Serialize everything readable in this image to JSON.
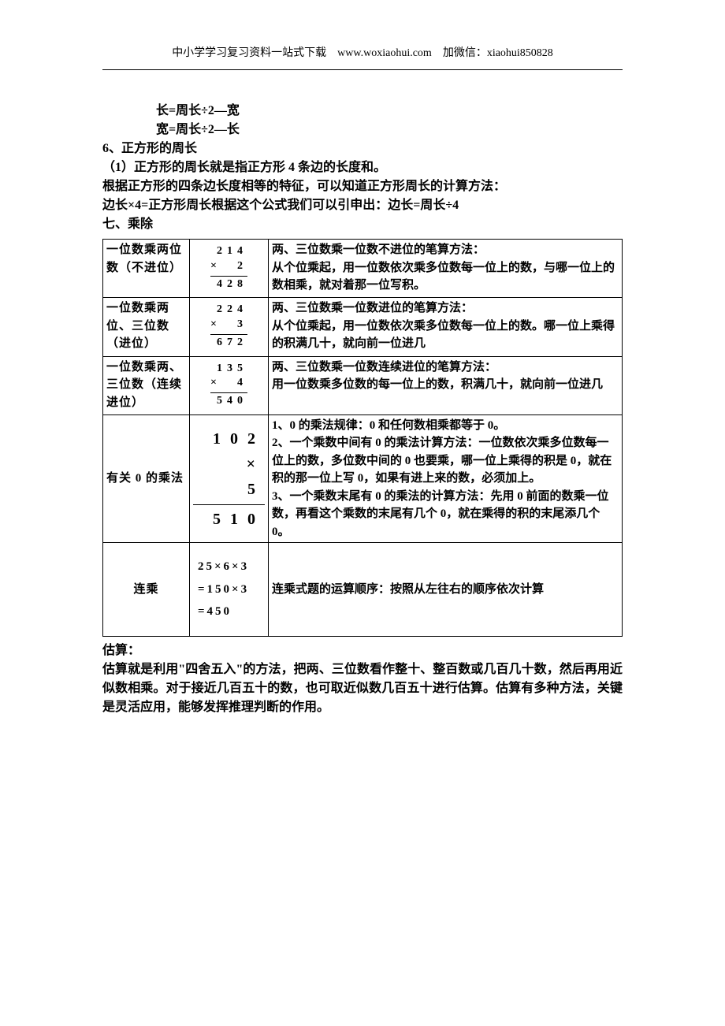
{
  "header": {
    "text": "中小学学习复习资料一站式下载　www.woxiaohui.com　加微信：xiaohui850828"
  },
  "lines": {
    "l1": "长=周长÷2—宽",
    "l2": "宽=周长÷2—长",
    "l3": "6、正方形的周长",
    "l4": "（1）正方形的周长就是指正方形 4 条边的长度和。",
    "l5": "根据正方形的四条边长度相等的特征，可以知道正方形周长的计算方法：",
    "l6": "边长×4=正方形周长根据这个公式我们可以引申出：边长=周长÷4",
    "l7": "七、乘除"
  },
  "table": {
    "r1": {
      "c1": "一位数乘两位数（不进位）",
      "c2": {
        "a": "214",
        "b": "×　2",
        "c": "428"
      },
      "c3": "两、三位数乘一位数不进位的笔算方法：\n从个位乘起，用一位数依次乘多位数每一位上的数，与哪一位上的数相乘，就对着那一位写积。"
    },
    "r2": {
      "c1": "一位数乘两位、三位数（进位）",
      "c2": {
        "a": "224",
        "b": "×　3",
        "c": "672"
      },
      "c3": "两、三位数乘一位数进位的笔算方法：\n从个位乘起，用一位数依次乘多位数每一位上的数。哪一位上乘得的积满几十，就向前一位进几"
    },
    "r3": {
      "c1": "一位数乘两、三位数（连续进位）",
      "c2": {
        "a": "135",
        "b": "×　4",
        "c": "540"
      },
      "c3": "两、三位数乘一位数连续进位的笔算方法：\n用一位数乘多位数的每一位上的数，积满几十，就向前一位进几"
    },
    "r4": {
      "c1": "有关 0 的乘法",
      "c2": {
        "a": "102",
        "b": "×　　5",
        "c": "510"
      },
      "c3": "1、0 的乘法规律：0 和任何数相乘都等于 0。\n2、一个乘数中间有 0 的乘法计算方法：一位数依次乘多位数每一位上的数，多位数中间的 0 也要乘，哪一位上乘得的积是 0，就在积的那一位上写 0，如果有进上来的数，必须加上。\n3、一个乘数末尾有 0 的乘法的计算方法：先用 0 前面的数乘一位数，再看这个乘数的末尾有几个 0，就在乘得的积的末尾添几个 0。"
    },
    "r5": {
      "c1": "连乘",
      "c2": {
        "a": " 25×6×3",
        "b": "=150×3",
        "c": "=450"
      },
      "c3": "连乘式题的运算顺序：按照从左往右的顺序依次计算"
    }
  },
  "footer": {
    "t": "估算：",
    "b": "估算就是利用\"四舍五入\"的方法，把两、三位数看作整十、整百数或几百几十数，然后再用近似数相乘。对于接近几百五十的数，也可取近似数几百五十进行估算。估算有多种方法，关键是灵活应用，能够发挥推理判断的作用。"
  },
  "colors": {
    "text": "#000000",
    "background": "#ffffff",
    "border": "#000000"
  }
}
